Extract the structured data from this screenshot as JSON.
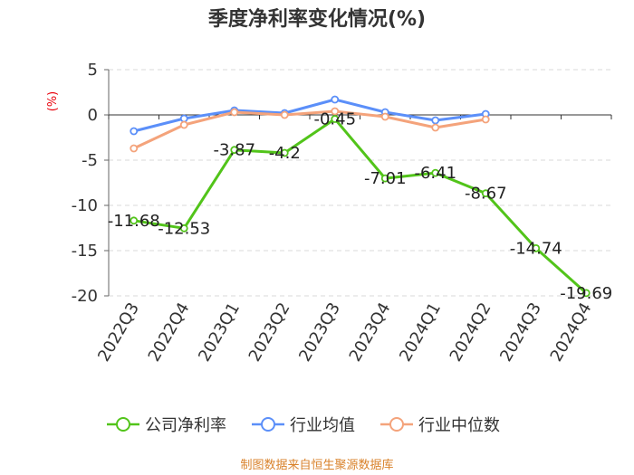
{
  "chart_data": {
    "type": "line",
    "title": "季度净利率变化情况(%)",
    "ylabel": "(%)",
    "categories": [
      "2022Q3",
      "2022Q4",
      "2023Q1",
      "2023Q2",
      "2023Q3",
      "2023Q4",
      "2024Q1",
      "2024Q2",
      "2024Q3",
      "2024Q4"
    ],
    "ylim": [
      -20,
      5
    ],
    "yticks": [
      5,
      0,
      -5,
      -10,
      -15,
      -20
    ],
    "grid": true,
    "legend_position": "bottom",
    "series": [
      {
        "name": "公司净利率",
        "color": "#52c41a",
        "values": [
          -11.68,
          -12.53,
          -3.87,
          -4.2,
          -0.45,
          -7.01,
          -6.41,
          -8.67,
          -14.74,
          -19.69
        ],
        "labels": [
          "-11.68",
          "-12.53",
          "-3.87",
          "-4.2",
          "-0.45",
          "-7.01",
          "-6.41",
          "-8.67",
          "-14.74",
          "-19.69"
        ]
      },
      {
        "name": "行业均值",
        "color": "#5b8ff9",
        "values": [
          -1.8,
          -0.4,
          0.5,
          0.2,
          1.7,
          0.3,
          -0.6,
          0.1,
          null,
          null
        ]
      },
      {
        "name": "行业中位数",
        "color": "#f4a37b",
        "values": [
          -3.7,
          -1.1,
          0.3,
          0.0,
          0.4,
          -0.2,
          -1.4,
          -0.5,
          null,
          null
        ]
      }
    ],
    "source": "制图数据来自恒生聚源数据库"
  }
}
